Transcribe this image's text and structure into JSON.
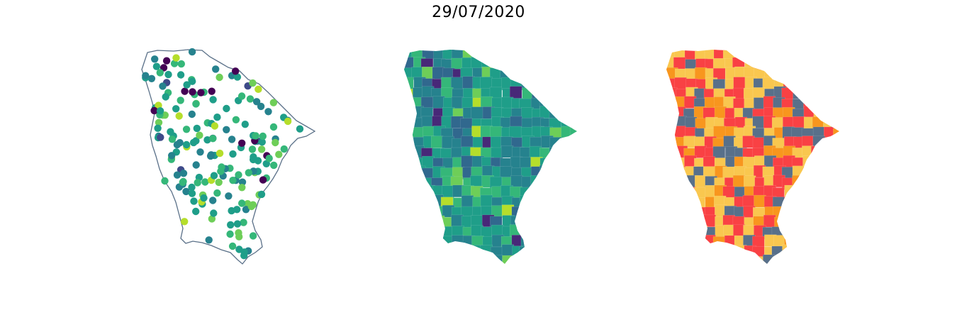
{
  "figure": {
    "title": "29/07/2020"
  },
  "panels": [
    {
      "id": "points",
      "kind": "scatter-map",
      "colormap": "viridis",
      "outline_color": "#5a7088"
    },
    {
      "id": "choropleth-continuous",
      "kind": "choropleth",
      "colormap": "viridis"
    },
    {
      "id": "choropleth-classes",
      "kind": "choropleth",
      "class_colors": [
        "#58708a",
        "#f9c74f",
        "#f8961e",
        "#f94144"
      ]
    }
  ]
}
